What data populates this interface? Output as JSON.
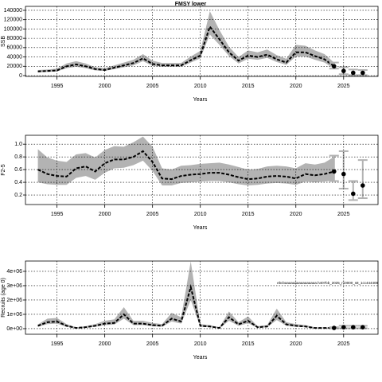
{
  "chart_data": [
    {
      "type": "line",
      "title": "FMSY lower",
      "xlabel": "Years",
      "ylabel": "SSB",
      "x": [
        1993,
        1994,
        1995,
        1996,
        1997,
        1998,
        1999,
        2000,
        2001,
        2002,
        2003,
        2004,
        2005,
        2006,
        2007,
        2008,
        2009,
        2010,
        2011,
        2012,
        2013,
        2014,
        2015,
        2016,
        2017,
        2018,
        2019,
        2020,
        2021,
        2022,
        2023,
        2024
      ],
      "series": [
        {
          "color": "#000000",
          "values": [
            9000,
            10000,
            11000,
            20000,
            24000,
            20000,
            14000,
            12000,
            17000,
            22000,
            27000,
            37000,
            25000,
            22000,
            22000,
            22000,
            33000,
            43000,
            105000,
            78000,
            50000,
            32000,
            43000,
            40000,
            45000,
            35000,
            28000,
            50000,
            50000,
            42000,
            35000,
            20000
          ]
        }
      ],
      "lower": [
        7000,
        8000,
        9000,
        16000,
        19000,
        16000,
        11000,
        10000,
        14000,
        18000,
        22000,
        31000,
        21000,
        19000,
        19000,
        19000,
        28000,
        37000,
        88000,
        66000,
        42000,
        26000,
        36000,
        34000,
        38000,
        29000,
        23000,
        41000,
        41000,
        34000,
        28000,
        15000
      ],
      "upper": [
        12000,
        13000,
        15000,
        26000,
        31000,
        26000,
        18000,
        16000,
        22000,
        28000,
        34000,
        46000,
        32000,
        27000,
        27000,
        27000,
        41000,
        53000,
        138000,
        98000,
        62000,
        40000,
        54000,
        50000,
        56000,
        44000,
        36000,
        66000,
        64000,
        54000,
        46000,
        28000
      ],
      "band_color": "#b3b3b3",
      "proj_x": [
        2024,
        2025,
        2026,
        2027
      ],
      "proj_values": [
        20000,
        10000,
        6000,
        6000
      ],
      "proj_lower": [
        15000,
        3000,
        1000,
        1000
      ],
      "proj_upper": [
        28000,
        18000,
        13000,
        12000
      ],
      "xlim": [
        1991.7,
        2028.6
      ],
      "xticks": [
        1995,
        2000,
        2005,
        2010,
        2015,
        2020,
        2025
      ],
      "ylim": [
        -1700,
        148500
      ],
      "yticks": [
        0,
        20000,
        40000,
        60000,
        80000,
        100000,
        120000,
        140000
      ],
      "grid": true
    },
    {
      "type": "line",
      "xlabel": "Years",
      "ylabel": "F2-5",
      "x": [
        1993,
        1994,
        1995,
        1996,
        1997,
        1998,
        1999,
        2000,
        2001,
        2002,
        2003,
        2004,
        2005,
        2006,
        2007,
        2008,
        2009,
        2010,
        2011,
        2012,
        2013,
        2014,
        2015,
        2016,
        2017,
        2018,
        2019,
        2020,
        2021,
        2022,
        2023,
        2024
      ],
      "series": [
        {
          "color": "#000000",
          "values": [
            0.6,
            0.53,
            0.5,
            0.49,
            0.62,
            0.65,
            0.57,
            0.7,
            0.76,
            0.76,
            0.8,
            0.89,
            0.72,
            0.46,
            0.45,
            0.5,
            0.52,
            0.53,
            0.55,
            0.55,
            0.52,
            0.48,
            0.45,
            0.46,
            0.49,
            0.5,
            0.49,
            0.46,
            0.53,
            0.51,
            0.53,
            0.57
          ]
        }
      ],
      "lower": [
        0.4,
        0.37,
        0.36,
        0.36,
        0.47,
        0.5,
        0.44,
        0.55,
        0.62,
        0.63,
        0.67,
        0.74,
        0.58,
        0.35,
        0.35,
        0.39,
        0.4,
        0.41,
        0.42,
        0.42,
        0.4,
        0.37,
        0.35,
        0.36,
        0.38,
        0.39,
        0.38,
        0.36,
        0.41,
        0.4,
        0.41,
        0.43
      ],
      "upper": [
        0.92,
        0.79,
        0.74,
        0.72,
        0.84,
        0.86,
        0.79,
        0.91,
        0.97,
        0.96,
        1.03,
        1.12,
        0.96,
        0.62,
        0.6,
        0.66,
        0.67,
        0.69,
        0.7,
        0.71,
        0.68,
        0.64,
        0.6,
        0.61,
        0.65,
        0.66,
        0.65,
        0.62,
        0.7,
        0.68,
        0.71,
        0.8
      ],
      "band_color": "#b3b3b3",
      "proj_x": [
        2024,
        2025,
        2026,
        2027
      ],
      "proj_values": [
        0.57,
        0.53,
        0.22,
        0.35
      ],
      "proj_lower": [
        0.42,
        0.3,
        0.12,
        0.15
      ],
      "proj_upper": [
        0.82,
        0.89,
        0.42,
        0.75
      ],
      "xlim": [
        1991.7,
        2028.6
      ],
      "xticks": [
        1995,
        2000,
        2005,
        2010,
        2015,
        2020,
        2025
      ],
      "ylim": [
        0.05,
        1.14
      ],
      "yticks": [
        0.2,
        0.4,
        0.6,
        0.8,
        {
          "value": 1.0,
          "label": "1.0"
        }
      ],
      "grid": true
    },
    {
      "type": "line",
      "xlabel": "Years",
      "ylabel": "Recruits (age 0)",
      "annotation": "ebcbaaaaaaaaaaaaaaaa.h407bb_2025_r10000_s8_1cc444408",
      "x": [
        1993,
        1994,
        1995,
        1996,
        1997,
        1998,
        1999,
        2000,
        2001,
        2002,
        2003,
        2004,
        2005,
        2006,
        2007,
        2008,
        2009,
        2010,
        2011,
        2012,
        2013,
        2014,
        2015,
        2016,
        2017,
        2018,
        2019,
        2020,
        2021,
        2022,
        2023,
        2024
      ],
      "series": [
        {
          "color": "#000000",
          "values": [
            200000,
            450000,
            500000,
            200000,
            50000,
            100000,
            200000,
            350000,
            400000,
            1000000,
            350000,
            350000,
            250000,
            200000,
            700000,
            500000,
            2900000,
            200000,
            150000,
            50000,
            800000,
            300000,
            550000,
            100000,
            150000,
            900000,
            300000,
            200000,
            150000,
            50000,
            50000,
            50000
          ]
        }
      ],
      "lower": [
        130000,
        320000,
        350000,
        130000,
        30000,
        60000,
        130000,
        250000,
        280000,
        700000,
        250000,
        250000,
        170000,
        130000,
        500000,
        350000,
        2000000,
        130000,
        100000,
        30000,
        550000,
        200000,
        380000,
        60000,
        100000,
        600000,
        200000,
        130000,
        100000,
        30000,
        30000,
        20000
      ],
      "upper": [
        300000,
        700000,
        750000,
        320000,
        90000,
        170000,
        320000,
        550000,
        650000,
        1500000,
        550000,
        550000,
        400000,
        320000,
        1100000,
        800000,
        4700000,
        320000,
        250000,
        90000,
        1200000,
        450000,
        850000,
        170000,
        250000,
        1400000,
        450000,
        320000,
        250000,
        90000,
        90000,
        100000
      ],
      "band_color": "#b3b3b3",
      "proj_x": [
        2024,
        2025,
        2026,
        2027
      ],
      "proj_values": [
        50000,
        100000,
        100000,
        100000
      ],
      "proj_lower": [
        20000,
        30000,
        30000,
        30000
      ],
      "proj_upper": [
        100000,
        200000,
        200000,
        200000
      ],
      "xlim": [
        1991.7,
        2028.6
      ],
      "xticks": [
        1995,
        2000,
        2005,
        2010,
        2015,
        2020,
        2025
      ],
      "ylim": [
        -390000,
        4720000
      ],
      "yticks": [
        {
          "value": 0,
          "label": "0e+00"
        },
        {
          "value": 1000000,
          "label": "1e+06"
        },
        {
          "value": 2000000,
          "label": "2e+06"
        },
        {
          "value": 3000000,
          "label": "3e+06"
        },
        {
          "value": 4000000,
          "label": "4e+06"
        }
      ],
      "grid": true
    }
  ]
}
